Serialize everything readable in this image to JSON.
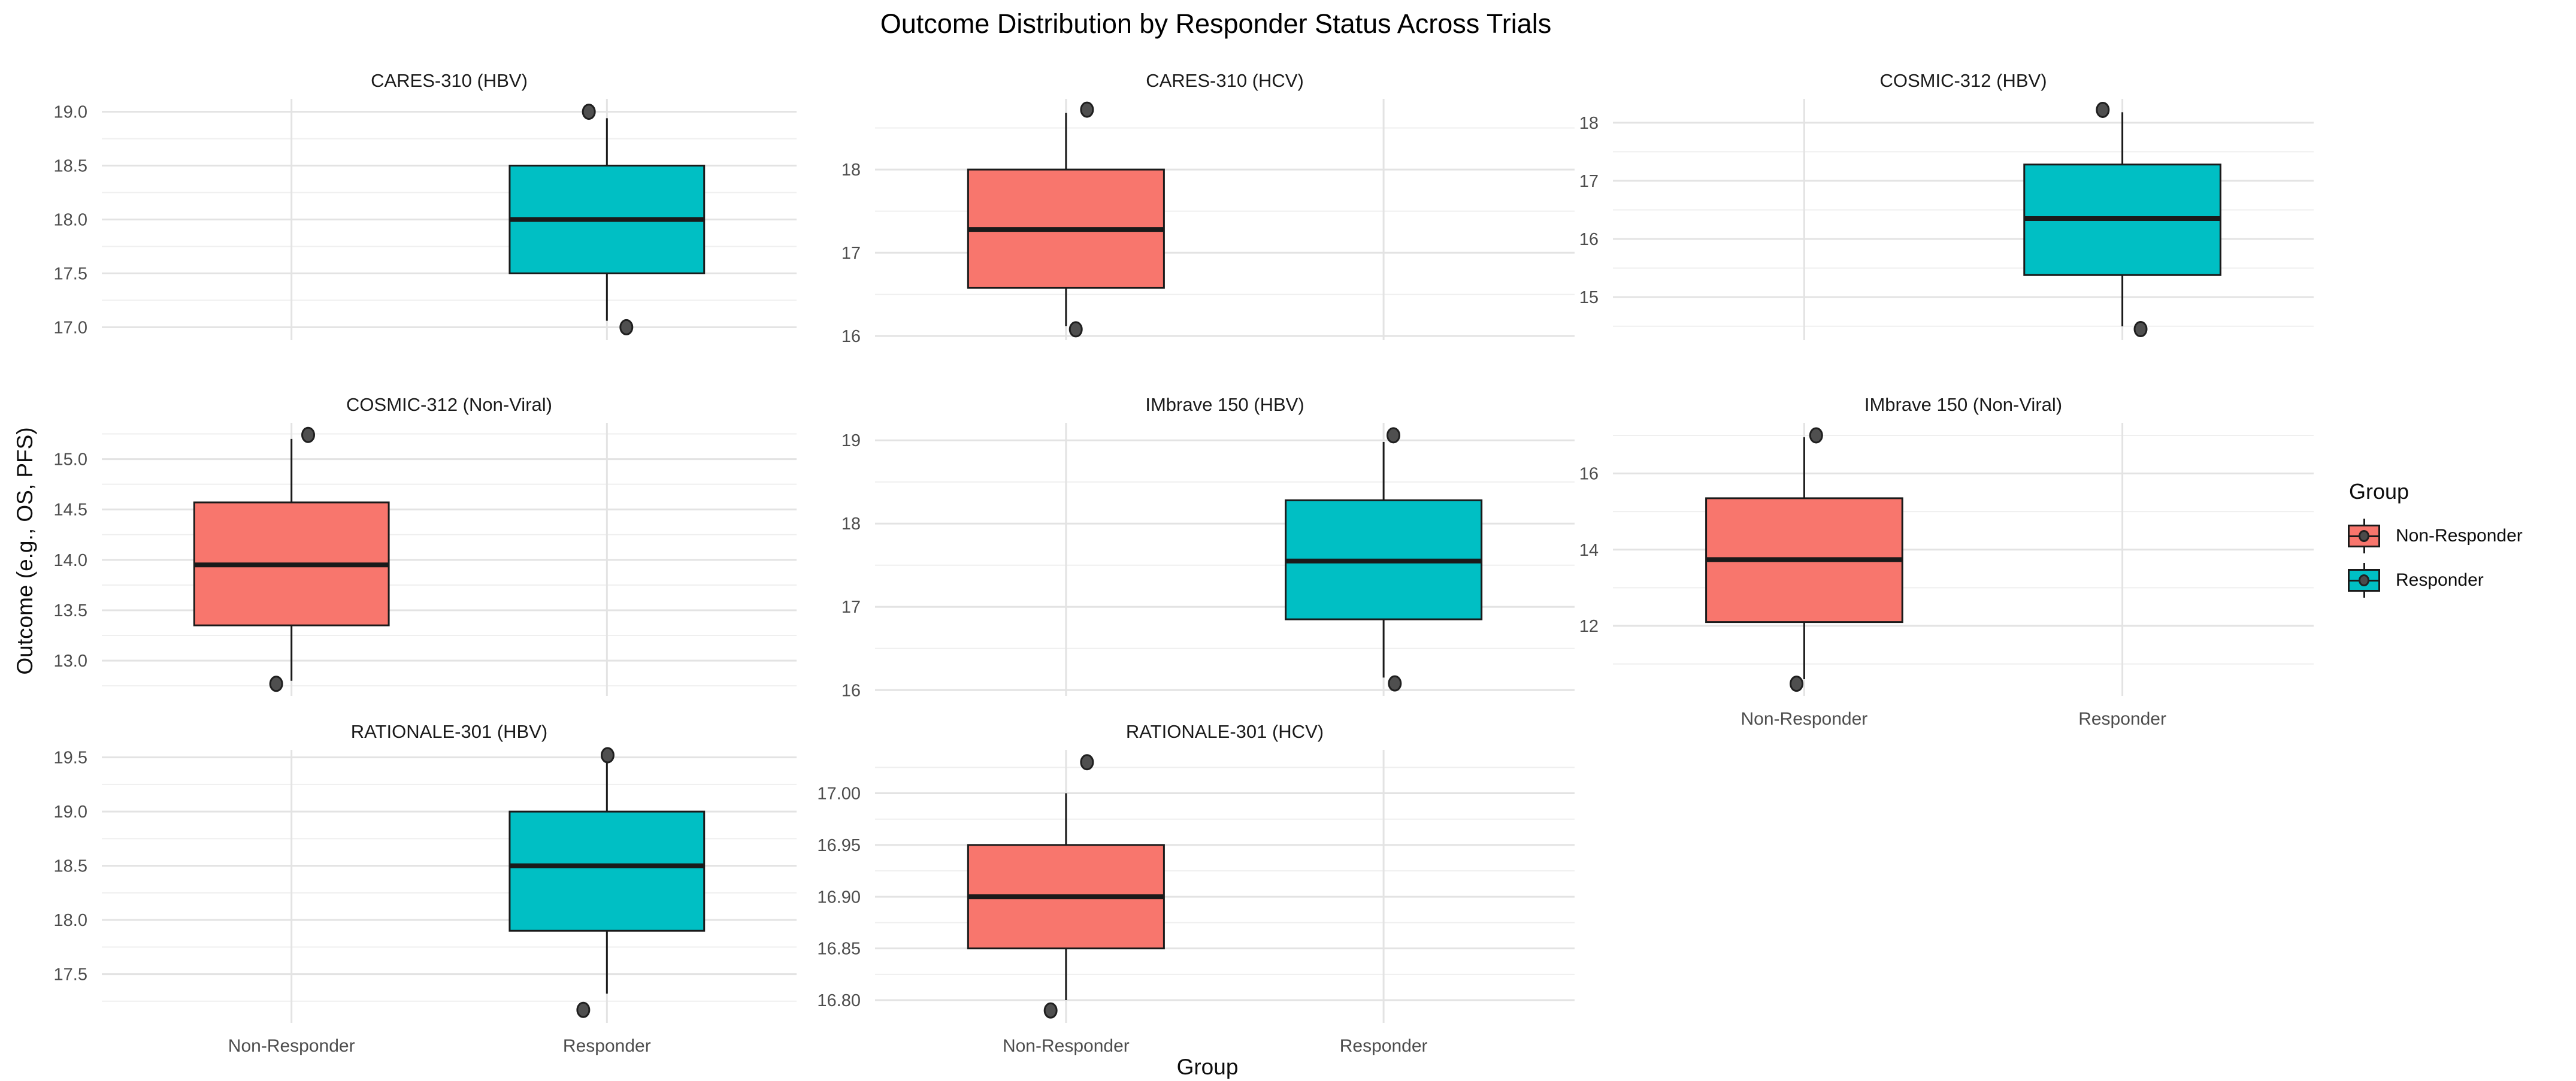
{
  "title": "Outcome Distribution by Responder Status Across Trials",
  "x_axis_title": "Group",
  "y_axis_title": "Outcome (e.g., OS, PFS)",
  "legend": {
    "title": "Group",
    "items": [
      {
        "label": "Non-Responder",
        "color": "#F8766D"
      },
      {
        "label": "Responder",
        "color": "#00BFC4"
      }
    ]
  },
  "chart_data": {
    "type": "boxplot-facets",
    "title": "Outcome Distribution by Responder Status Across Trials",
    "xlabel": "Group",
    "ylabel": "Outcome (e.g., OS, PFS)",
    "categories": [
      "Non-Responder",
      "Responder"
    ],
    "colors": {
      "non_responder": "#F8766D",
      "responder": "#00BFC4"
    },
    "grid": true,
    "legend_position": "right",
    "facets": [
      {
        "trial": "CARES-310 (HBV)",
        "group": "Responder",
        "color": "#00BFC4",
        "ylim": [
          16.88,
          19.12
        ],
        "ticks": [
          {
            "v": 17.0,
            "label": "17.0"
          },
          {
            "v": 17.5,
            "label": "17.5"
          },
          {
            "v": 18.0,
            "label": "18.0"
          },
          {
            "v": 18.5,
            "label": "18.5"
          },
          {
            "v": 19.0,
            "label": "19.0"
          }
        ],
        "stats": {
          "whisker_low": 17.06,
          "q1": 17.5,
          "median": 18.0,
          "q3": 18.5,
          "whisker_high": 18.94
        },
        "outliers": [
          {
            "v": 19.0,
            "dx": -0.026
          },
          {
            "v": 17.0,
            "dx": 0.028
          }
        ],
        "show_x_tick_labels": false
      },
      {
        "trial": "CARES-310 (HCV)",
        "group": "Non-Responder",
        "color": "#F8766D",
        "ylim": [
          15.95,
          18.85
        ],
        "ticks": [
          {
            "v": 16,
            "label": "16"
          },
          {
            "v": 17,
            "label": "17"
          },
          {
            "v": 18,
            "label": "18"
          }
        ],
        "stats": {
          "whisker_low": 16.12,
          "q1": 16.58,
          "median": 17.28,
          "q3": 18.0,
          "whisker_high": 18.68
        },
        "outliers": [
          {
            "v": 18.72,
            "dx": 0.03
          },
          {
            "v": 16.08,
            "dx": 0.014
          }
        ],
        "show_x_tick_labels": false
      },
      {
        "trial": "COSMIC-312 (HBV)",
        "group": "Responder",
        "color": "#00BFC4",
        "ylim": [
          14.26,
          18.41
        ],
        "ticks": [
          {
            "v": 15,
            "label": "15"
          },
          {
            "v": 16,
            "label": "16"
          },
          {
            "v": 17,
            "label": "17"
          },
          {
            "v": 18,
            "label": "18"
          }
        ],
        "stats": {
          "whisker_low": 14.5,
          "q1": 15.38,
          "median": 16.35,
          "q3": 17.28,
          "whisker_high": 18.18
        },
        "outliers": [
          {
            "v": 18.22,
            "dx": -0.028
          },
          {
            "v": 14.45,
            "dx": 0.026
          }
        ],
        "show_x_tick_labels": false
      },
      {
        "trial": "COSMIC-312 (Non-Viral)",
        "group": "Non-Responder",
        "color": "#F8766D",
        "ylim": [
          12.65,
          15.36
        ],
        "ticks": [
          {
            "v": 13.0,
            "label": "13.0"
          },
          {
            "v": 13.5,
            "label": "13.5"
          },
          {
            "v": 14.0,
            "label": "14.0"
          },
          {
            "v": 14.5,
            "label": "14.5"
          },
          {
            "v": 15.0,
            "label": "15.0"
          }
        ],
        "stats": {
          "whisker_low": 12.8,
          "q1": 13.35,
          "median": 13.95,
          "q3": 14.57,
          "whisker_high": 15.2
        },
        "outliers": [
          {
            "v": 15.24,
            "dx": 0.024
          },
          {
            "v": 12.77,
            "dx": -0.022
          }
        ],
        "show_x_tick_labels": false
      },
      {
        "trial": "IMbrave 150 (HBV)",
        "group": "Responder",
        "color": "#00BFC4",
        "ylim": [
          15.93,
          19.21
        ],
        "ticks": [
          {
            "v": 16,
            "label": "16"
          },
          {
            "v": 17,
            "label": "17"
          },
          {
            "v": 18,
            "label": "18"
          },
          {
            "v": 19,
            "label": "19"
          }
        ],
        "stats": {
          "whisker_low": 16.15,
          "q1": 16.85,
          "median": 17.55,
          "q3": 18.28,
          "whisker_high": 18.98
        },
        "outliers": [
          {
            "v": 19.06,
            "dx": 0.014
          },
          {
            "v": 16.08,
            "dx": 0.016
          }
        ],
        "show_x_tick_labels": false
      },
      {
        "trial": "IMbrave 150 (Non-Viral)",
        "group": "Non-Responder",
        "color": "#F8766D",
        "ylim": [
          10.16,
          17.33
        ],
        "ticks": [
          {
            "v": 12,
            "label": "12"
          },
          {
            "v": 14,
            "label": "14"
          },
          {
            "v": 16,
            "label": "16"
          }
        ],
        "stats": {
          "whisker_low": 10.6,
          "q1": 12.1,
          "median": 13.74,
          "q3": 15.35,
          "whisker_high": 16.95
        },
        "outliers": [
          {
            "v": 17.0,
            "dx": 0.017
          },
          {
            "v": 10.48,
            "dx": -0.011
          }
        ],
        "show_x_tick_labels": true
      },
      {
        "trial": "RATIONALE-301 (HBV)",
        "group": "Responder",
        "color": "#00BFC4",
        "ylim": [
          17.05,
          19.57
        ],
        "ticks": [
          {
            "v": 17.5,
            "label": "17.5"
          },
          {
            "v": 18.0,
            "label": "18.0"
          },
          {
            "v": 18.5,
            "label": "18.5"
          },
          {
            "v": 19.0,
            "label": "19.0"
          },
          {
            "v": 19.5,
            "label": "19.5"
          }
        ],
        "stats": {
          "whisker_low": 17.32,
          "q1": 17.9,
          "median": 18.5,
          "q3": 19.0,
          "whisker_high": 19.48
        },
        "outliers": [
          {
            "v": 19.52,
            "dx": 0.001
          },
          {
            "v": 17.17,
            "dx": -0.034
          }
        ],
        "show_x_tick_labels": true
      },
      {
        "trial": "RATIONALE-301 (HCV)",
        "group": "Non-Responder",
        "color": "#F8766D",
        "ylim": [
          16.778,
          17.042
        ],
        "ticks": [
          {
            "v": 16.8,
            "label": "16.80"
          },
          {
            "v": 16.85,
            "label": "16.85"
          },
          {
            "v": 16.9,
            "label": "16.90"
          },
          {
            "v": 16.95,
            "label": "16.95"
          },
          {
            "v": 17.0,
            "label": "17.00"
          }
        ],
        "stats": {
          "whisker_low": 16.8,
          "q1": 16.85,
          "median": 16.9,
          "q3": 16.95,
          "whisker_high": 17.0
        },
        "outliers": [
          {
            "v": 17.03,
            "dx": 0.03
          },
          {
            "v": 16.79,
            "dx": -0.022
          }
        ],
        "show_x_tick_labels": true
      }
    ]
  }
}
